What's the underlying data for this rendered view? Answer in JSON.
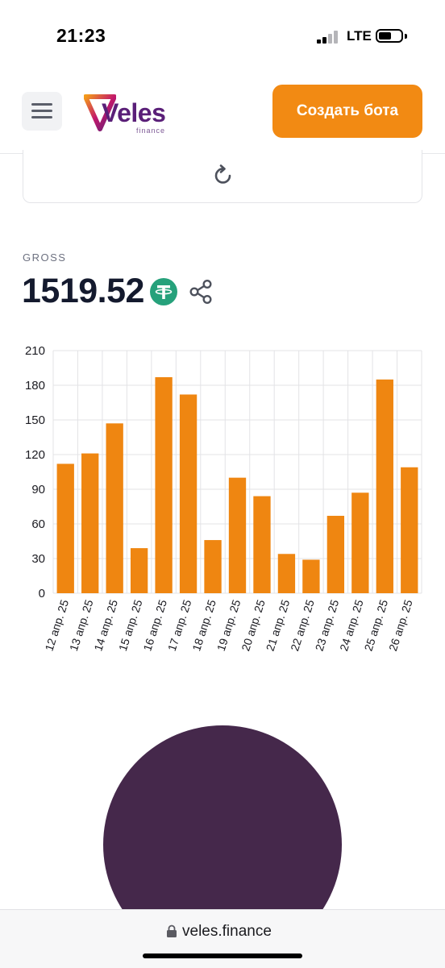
{
  "status_bar": {
    "time": "21:23",
    "network": "LTE"
  },
  "header": {
    "logo_text": "Veles",
    "logo_subtext": "finance",
    "create_bot_label": "Создать бота"
  },
  "stats": {
    "gross_label": "GROSS",
    "gross_value": "1519.52"
  },
  "icons": {
    "menu": "menu-icon",
    "refresh": "refresh-icon",
    "currency": "tether-icon",
    "share": "share-icon",
    "lock": "lock-icon",
    "logo": "veles-logo"
  },
  "colors": {
    "accent": "#f28a13",
    "bar": "#ef8611",
    "tether": "#26a17b",
    "brand": "#5a1f78",
    "dark_circle": "#45284b"
  },
  "chart_data": {
    "type": "bar",
    "categories": [
      "12 апр. 25",
      "13 апр. 25",
      "14 апр. 25",
      "15 апр. 25",
      "16 апр. 25",
      "17 апр. 25",
      "18 апр. 25",
      "19 апр. 25",
      "20 апр. 25",
      "21 апр. 25",
      "22 апр. 25",
      "23 апр. 25",
      "24 апр. 25",
      "25 апр. 25",
      "26 апр. 25"
    ],
    "values": [
      112,
      121,
      147,
      39,
      187,
      172,
      46,
      100,
      84,
      34,
      29,
      67,
      87,
      185,
      109
    ],
    "ylim": [
      0,
      210
    ],
    "yticks": [
      0,
      30,
      60,
      90,
      120,
      150,
      180,
      210
    ],
    "grid": true,
    "title": "",
    "xlabel": "",
    "ylabel": ""
  },
  "url_bar": {
    "domain": "veles.finance"
  }
}
